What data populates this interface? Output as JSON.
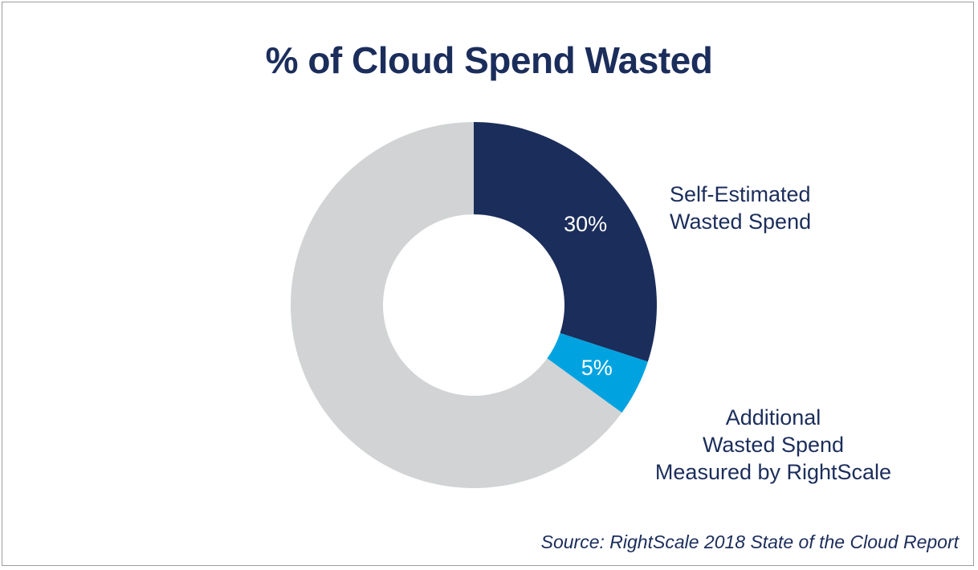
{
  "chart_data": {
    "type": "pie",
    "title": "% of Cloud Spend Wasted",
    "slices": [
      {
        "label_lines": [
          "Self-Estimated",
          "Wasted Spend"
        ],
        "value": 30,
        "value_label": "30%",
        "color": "#1b2d5b"
      },
      {
        "label_lines": [
          "Additional",
          "Wasted Spend",
          "Measured by RightScale"
        ],
        "value": 5,
        "value_label": "5%",
        "color": "#00a3e0"
      },
      {
        "label_lines": [],
        "value": 65,
        "value_label": "",
        "color": "#d1d3d4"
      }
    ],
    "donut": true,
    "legend": "none"
  },
  "source": "Source: RightScale 2018 State of the Cloud Report"
}
